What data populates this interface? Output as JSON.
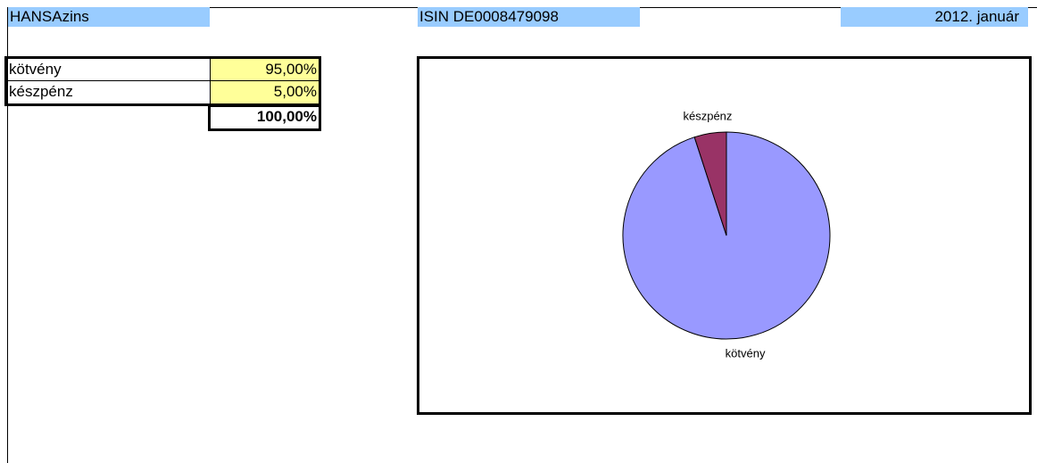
{
  "header": {
    "fund": "HANSAzins",
    "isin": "ISIN DE0008479098",
    "date": "2012. január"
  },
  "table": {
    "rows": [
      [
        "kötvény",
        "95,00%"
      ],
      [
        "készpénz",
        "5,00%"
      ]
    ],
    "total": "100,00%"
  },
  "chart_data": {
    "type": "pie",
    "categories": [
      "kötvény",
      "készpénz"
    ],
    "values": [
      95,
      5
    ],
    "colors": [
      "#9999ff",
      "#993366"
    ]
  }
}
